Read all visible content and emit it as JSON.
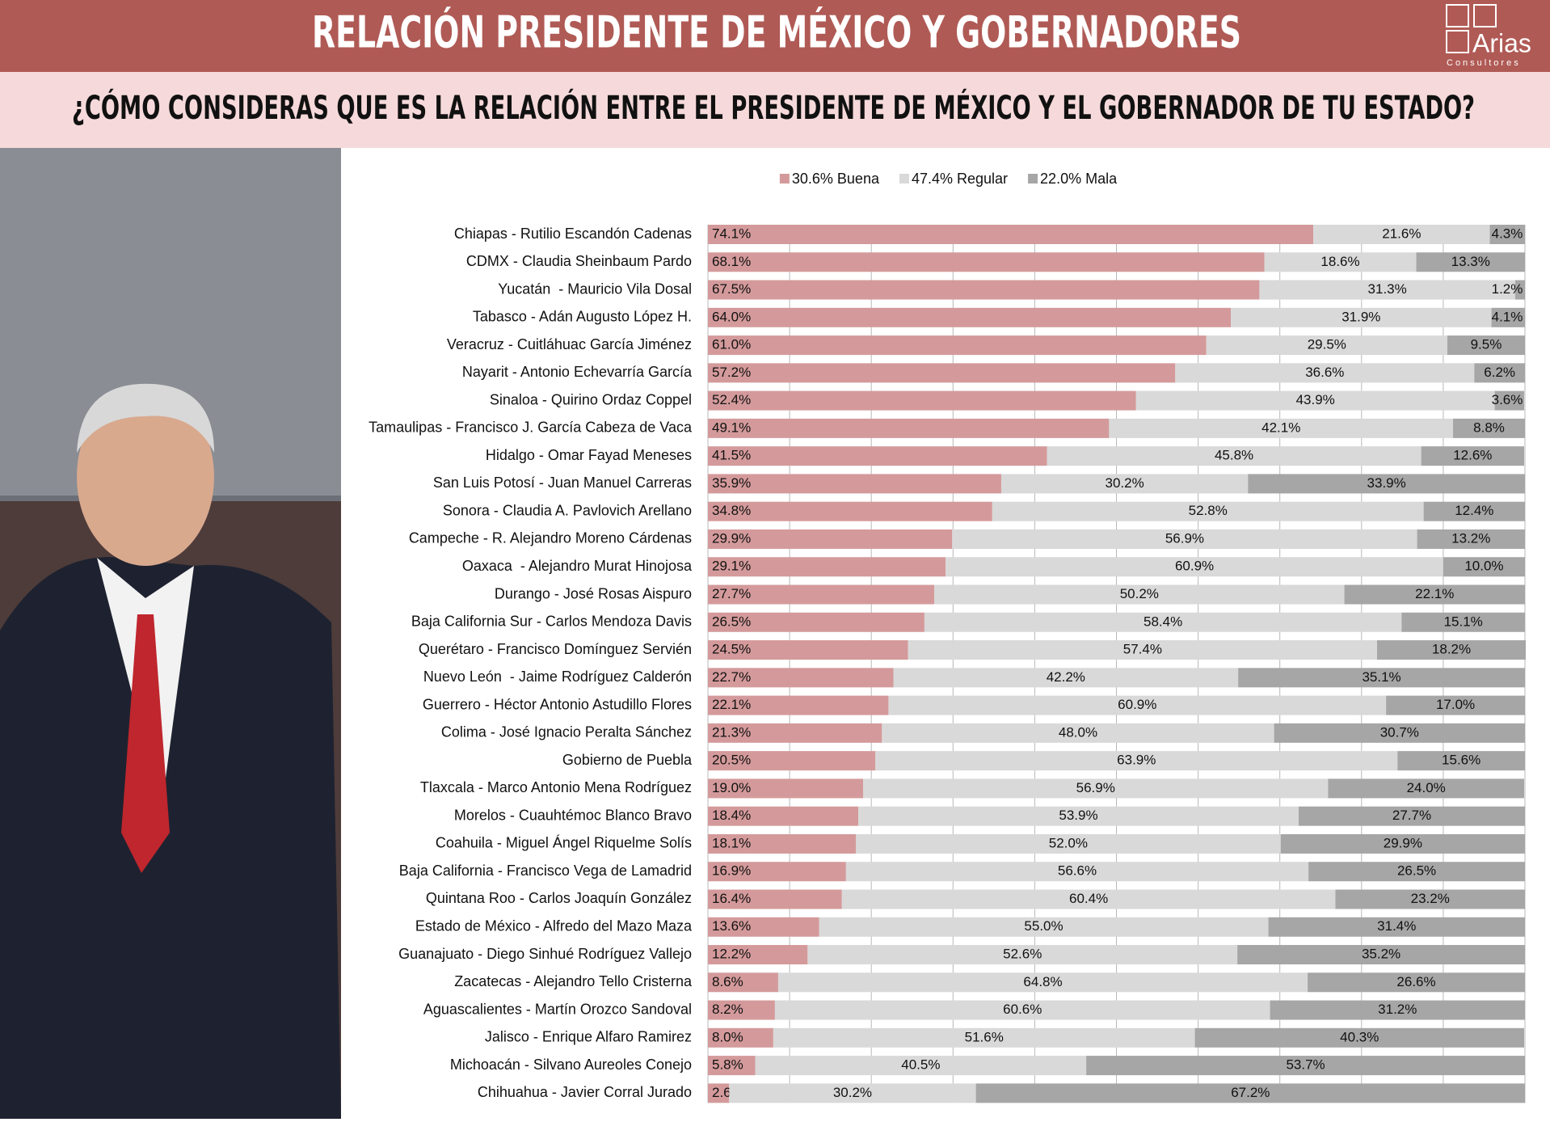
{
  "logo": {
    "name": "Arias",
    "tagline": "Consultores"
  },
  "chart_data": {
    "type": "stacked-bar-horizontal",
    "title": "RELACIÓN PRESIDENTE DE MÉXICO Y GOBERNADORES",
    "subtitle": "¿CÓMO CONSIDERAS QUE ES LA RELACIÓN ENTRE EL PRESIDENTE DE MÉXICO Y EL GOBERNADOR DE TU ESTADO?",
    "categories": [
      "Chiapas - Rutilio Escandón Cadenas",
      "CDMX - Claudia Sheinbaum Pardo",
      "Yucatán  - Mauricio Vila Dosal",
      "Tabasco - Adán Augusto López H.",
      "Veracruz - Cuitláhuac García Jiménez",
      "Nayarit - Antonio Echevarría García",
      "Sinaloa - Quirino Ordaz Coppel",
      "Tamaulipas - Francisco J. García Cabeza de Vaca",
      "Hidalgo - Omar Fayad Meneses",
      "San Luis Potosí - Juan Manuel Carreras",
      "Sonora - Claudia A. Pavlovich Arellano",
      "Campeche - R. Alejandro Moreno Cárdenas",
      "Oaxaca  - Alejandro Murat Hinojosa",
      "Durango - José Rosas Aispuro",
      "Baja California Sur - Carlos Mendoza Davis",
      "Querétaro - Francisco Domínguez Servién",
      "Nuevo León  - Jaime Rodríguez Calderón",
      "Guerrero - Héctor Antonio Astudillo Flores",
      "Colima - José Ignacio Peralta Sánchez",
      "Gobierno de Puebla",
      "Tlaxcala - Marco Antonio Mena Rodríguez",
      "Morelos - Cuauhtémoc Blanco Bravo",
      "Coahuila - Miguel Ángel Riquelme Solís",
      "Baja California - Francisco Vega de Lamadrid",
      "Quintana Roo - Carlos Joaquín González",
      "Estado de México - Alfredo del Mazo Maza",
      "Guanajuato - Diego Sinhué Rodríguez Vallejo",
      "Zacatecas - Alejandro Tello Cristerna",
      "Aguascalientes - Martín Orozco Sandoval",
      "Jalisco - Enrique Alfaro Ramirez",
      "Michoacán - Silvano Aureoles Conejo",
      "Chihuahua - Javier Corral Jurado"
    ],
    "series": [
      {
        "name": "30.6% Buena",
        "color": "#d49a9b",
        "values": [
          74.1,
          68.1,
          67.5,
          64.0,
          61.0,
          57.2,
          52.4,
          49.1,
          41.5,
          35.9,
          34.8,
          29.9,
          29.1,
          27.7,
          26.5,
          24.5,
          22.7,
          22.1,
          21.3,
          20.5,
          19.0,
          18.4,
          18.1,
          16.9,
          16.4,
          13.6,
          12.2,
          8.6,
          8.2,
          8.0,
          5.8,
          2.6
        ],
        "value_labels": [
          "74.1%",
          "68.1%",
          "67.5%",
          "64.0%",
          "61.0%",
          "57.2%",
          "52.4%",
          "49.1%",
          "41.5%",
          "35.9%",
          "34.8%",
          "29.9%",
          "29.1%",
          "27.7%",
          "26.5%",
          "24.5%",
          "22.7%",
          "22.1%",
          "21.3%",
          "20.5%",
          "19.0%",
          "18.4%",
          "18.1%",
          "16.9%",
          "16.4%",
          "13.6%",
          "12.2%",
          "8.6%",
          "8.2%",
          "8.0%",
          "5.8%",
          "2.6%"
        ]
      },
      {
        "name": "47.4% Regular",
        "color": "#d9d9d9",
        "values": [
          21.6,
          18.6,
          31.3,
          31.9,
          29.5,
          36.6,
          43.9,
          42.1,
          45.8,
          30.2,
          52.8,
          56.9,
          60.9,
          50.2,
          58.4,
          57.4,
          42.2,
          60.9,
          48.0,
          63.9,
          56.9,
          53.9,
          52.0,
          56.6,
          60.4,
          55.0,
          52.6,
          64.8,
          60.6,
          51.6,
          40.5,
          30.2
        ],
        "value_labels": [
          "21.6%",
          "18.6%",
          "31.3%",
          "31.9%",
          "29.5%",
          "36.6%",
          "43.9%",
          "42.1%",
          "45.8%",
          "30.2%",
          "52.8%",
          "56.9%",
          "60.9%",
          "50.2%",
          "58.4%",
          "57.4%",
          "42.2%",
          "60.9%",
          "48.0%",
          "63.9%",
          "56.9%",
          "53.9%",
          "52.0%",
          "56.6%",
          "60.4%",
          "55.0%",
          "52.6%",
          "64.8%",
          "60.6%",
          "51.6%",
          "40.5%",
          "30.2%"
        ]
      },
      {
        "name": "22.0% Mala",
        "color": "#a6a6a6",
        "values": [
          4.3,
          13.3,
          1.2,
          4.1,
          9.5,
          6.2,
          3.6,
          8.8,
          12.6,
          33.9,
          12.4,
          13.2,
          10.0,
          22.1,
          15.1,
          18.2,
          35.1,
          17.0,
          30.7,
          15.6,
          24.0,
          27.7,
          29.9,
          26.5,
          23.2,
          31.4,
          35.2,
          26.6,
          31.2,
          40.3,
          53.7,
          67.2
        ],
        "value_labels": [
          "4.3%",
          "13.3%",
          "1.2%",
          "4.1%",
          "9.5%",
          "6.2%",
          "3.6%",
          "8.8%",
          "12.6%",
          "33.9%",
          "12.4%",
          "13.2%",
          "10.0%",
          "22.1%",
          "15.1%",
          "18.2%",
          "35.1%",
          "17.0%",
          "30.7%",
          "15.6%",
          "24.0%",
          "27.7%",
          "29.9%",
          "26.5%",
          "23.2%",
          "31.4%",
          "35.2%",
          "26.6%",
          "31.2%",
          "40.3%",
          "53.7%",
          "67.2%"
        ]
      }
    ],
    "xlim": [
      0,
      100
    ],
    "xticks": [
      0,
      10,
      20,
      30,
      40,
      50,
      60,
      70,
      80,
      90,
      100
    ],
    "grid": true
  }
}
